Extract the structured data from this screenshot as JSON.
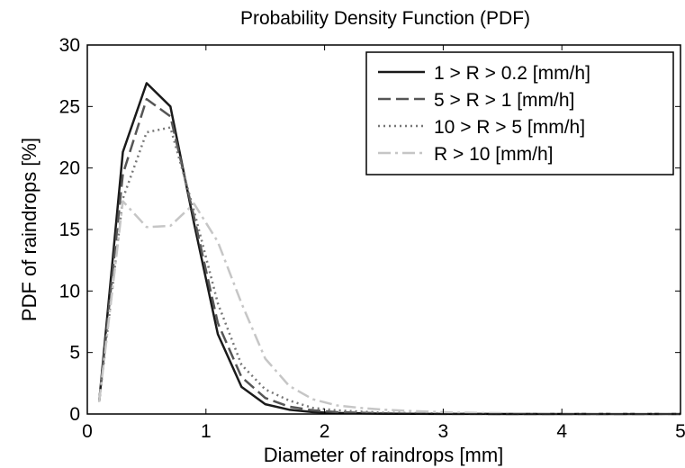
{
  "chart_data": {
    "type": "line",
    "title": "Probability Density Function (PDF)",
    "xlabel": "Diameter of raindrops [mm]",
    "ylabel": "PDF of raindrops [%]",
    "xlim": [
      0,
      5
    ],
    "ylim": [
      0,
      30
    ],
    "xticks": [
      0,
      1,
      2,
      3,
      4,
      5
    ],
    "yticks": [
      0,
      5,
      10,
      15,
      20,
      25,
      30
    ],
    "grid": false,
    "legend_position": "top-right",
    "x": [
      0.1,
      0.3,
      0.5,
      0.7,
      0.9,
      1.1,
      1.3,
      1.5,
      1.7,
      1.9,
      2.1,
      2.3,
      2.5,
      2.7,
      2.9,
      3.1,
      3.3,
      3.5,
      3.7,
      3.9,
      4.1,
      4.3,
      4.5,
      4.7,
      4.9,
      5.0
    ],
    "series": [
      {
        "name": "1 > R > 0.2 [mm/h]",
        "color": "#1a1a1a",
        "dash": "solid",
        "values": [
          1.0,
          21.3,
          26.9,
          25.0,
          15.5,
          6.5,
          2.2,
          0.8,
          0.35,
          0.15,
          0.08,
          0.05,
          0.03,
          0.02,
          0.01,
          0.01,
          0.01,
          0.0,
          0.0,
          0.0,
          0.0,
          0.0,
          0.0,
          0.0,
          0.0,
          0.0
        ]
      },
      {
        "name": "5 > R > 1 [mm/h]",
        "color": "#555555",
        "dash": "dashed",
        "values": [
          1.0,
          19.5,
          25.6,
          24.2,
          16.0,
          7.4,
          3.0,
          1.3,
          0.6,
          0.3,
          0.15,
          0.1,
          0.05,
          0.03,
          0.02,
          0.01,
          0.01,
          0.0,
          0.0,
          0.0,
          0.0,
          0.0,
          0.0,
          0.0,
          0.0,
          0.0
        ]
      },
      {
        "name": "10 > R > 5 [mm/h]",
        "color": "#777777",
        "dash": "dotted",
        "values": [
          1.0,
          17.5,
          22.9,
          23.3,
          16.5,
          9.0,
          4.0,
          2.0,
          1.1,
          0.5,
          0.3,
          0.2,
          0.1,
          0.08,
          0.05,
          0.04,
          0.03,
          0.02,
          0.02,
          0.01,
          0.01,
          0.01,
          0.01,
          0.01,
          0.0,
          0.0
        ]
      },
      {
        "name": "R > 10 [mm/h]",
        "color": "#c6c6c6",
        "dash": "dashdot",
        "values": [
          1.0,
          17.3,
          15.2,
          15.3,
          17.1,
          14.0,
          9.0,
          4.5,
          2.3,
          1.2,
          0.7,
          0.5,
          0.35,
          0.25,
          0.18,
          0.12,
          0.09,
          0.07,
          0.05,
          0.04,
          0.03,
          0.02,
          0.02,
          0.02,
          0.01,
          0.01
        ]
      }
    ]
  }
}
